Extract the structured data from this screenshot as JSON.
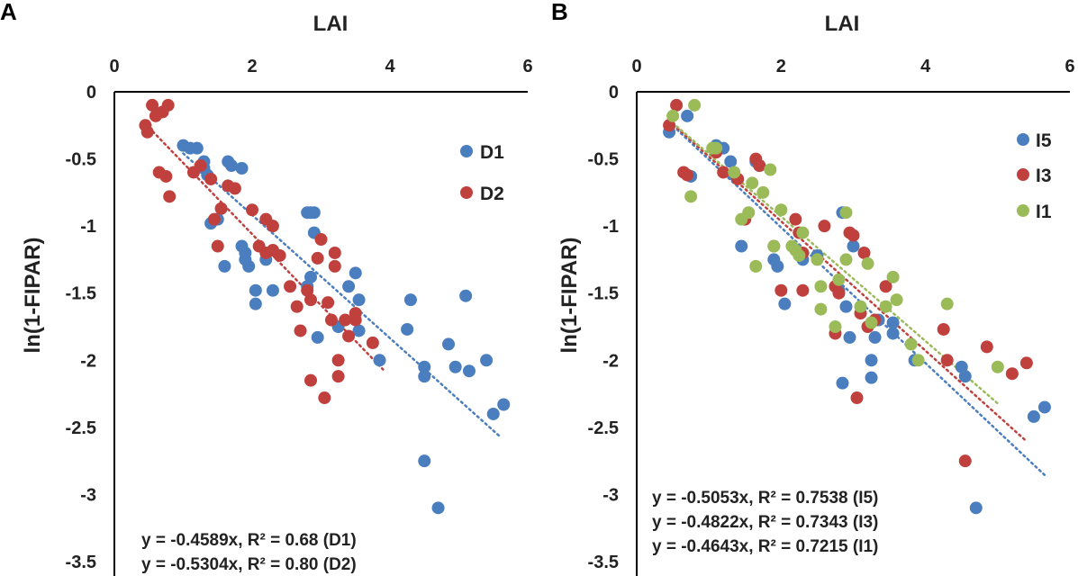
{
  "colors": {
    "D1": "#4a7ebf",
    "D2": "#c0403d",
    "I5": "#4a7ebf",
    "I3": "#c0403d",
    "I1": "#9bbb59"
  },
  "chart_data": [
    {
      "panel": "A",
      "type": "scatter",
      "xlabel": "LAI",
      "ylabel": "ln(1-FIPAR)",
      "xlim": [
        0,
        6
      ],
      "ylim": [
        -3.5,
        0
      ],
      "xticks": [
        "0",
        "2",
        "4",
        "6"
      ],
      "yticks": [
        "0",
        "-0.5",
        "-1",
        "-1.5",
        "-2",
        "-2.5",
        "-3",
        "-3.5"
      ],
      "legend_position": "top-right",
      "equations": [
        "y = -0.4589x, R² = 0.68 (D1)",
        "y = -0.5304x, R² = 0.80 (D2)"
      ],
      "series": [
        {
          "name": "D1",
          "color_key": "D1",
          "slope": -0.4589,
          "fit_x": [
            1.0,
            5.6
          ],
          "points": [
            [
              1.0,
              -0.4
            ],
            [
              1.1,
              -0.42
            ],
            [
              1.2,
              -0.42
            ],
            [
              1.3,
              -0.52
            ],
            [
              1.3,
              -0.57
            ],
            [
              1.35,
              -0.62
            ],
            [
              1.4,
              -0.98
            ],
            [
              1.5,
              -0.95
            ],
            [
              1.6,
              -1.3
            ],
            [
              1.65,
              -0.52
            ],
            [
              1.7,
              -0.55
            ],
            [
              1.85,
              -0.57
            ],
            [
              1.85,
              -1.15
            ],
            [
              1.9,
              -1.2
            ],
            [
              1.9,
              -1.25
            ],
            [
              1.95,
              -1.3
            ],
            [
              2.05,
              -1.48
            ],
            [
              2.05,
              -1.58
            ],
            [
              2.2,
              -1.25
            ],
            [
              2.3,
              -1.48
            ],
            [
              2.8,
              -0.9
            ],
            [
              2.85,
              -0.9
            ],
            [
              2.9,
              -0.9
            ],
            [
              2.9,
              -1.05
            ],
            [
              2.8,
              -1.45
            ],
            [
              2.85,
              -1.38
            ],
            [
              2.95,
              -1.83
            ],
            [
              3.25,
              -1.75
            ],
            [
              3.4,
              -1.45
            ],
            [
              3.5,
              -1.35
            ],
            [
              3.55,
              -1.55
            ],
            [
              3.55,
              -1.78
            ],
            [
              3.85,
              -2.0
            ],
            [
              4.25,
              -1.77
            ],
            [
              4.3,
              -1.55
            ],
            [
              4.5,
              -2.05
            ],
            [
              4.5,
              -2.12
            ],
            [
              4.5,
              -2.75
            ],
            [
              4.7,
              -3.1
            ],
            [
              4.85,
              -1.88
            ],
            [
              4.95,
              -2.05
            ],
            [
              5.15,
              -2.08
            ],
            [
              5.1,
              -1.52
            ],
            [
              5.4,
              -2.0
            ],
            [
              5.5,
              -2.4
            ],
            [
              5.65,
              -2.33
            ]
          ]
        },
        {
          "name": "D2",
          "color_key": "D2",
          "slope": -0.5304,
          "fit_x": [
            0.45,
            3.9
          ],
          "points": [
            [
              0.45,
              -0.25
            ],
            [
              0.48,
              -0.3
            ],
            [
              0.55,
              -0.1
            ],
            [
              0.6,
              -0.18
            ],
            [
              0.7,
              -0.15
            ],
            [
              0.78,
              -0.1
            ],
            [
              0.65,
              -0.6
            ],
            [
              0.75,
              -0.63
            ],
            [
              0.8,
              -0.78
            ],
            [
              1.15,
              -0.6
            ],
            [
              1.25,
              -0.55
            ],
            [
              1.4,
              -0.65
            ],
            [
              1.45,
              -0.95
            ],
            [
              1.5,
              -1.15
            ],
            [
              1.55,
              -0.87
            ],
            [
              1.65,
              -0.7
            ],
            [
              1.75,
              -0.72
            ],
            [
              2.0,
              -0.88
            ],
            [
              2.1,
              -1.15
            ],
            [
              2.2,
              -0.95
            ],
            [
              2.3,
              -1.0
            ],
            [
              2.3,
              -1.18
            ],
            [
              2.2,
              -1.2
            ],
            [
              2.4,
              -1.22
            ],
            [
              2.55,
              -1.45
            ],
            [
              2.65,
              -1.6
            ],
            [
              2.7,
              -1.78
            ],
            [
              2.85,
              -1.55
            ],
            [
              2.8,
              -1.48
            ],
            [
              2.85,
              -2.15
            ],
            [
              2.95,
              -1.24
            ],
            [
              3.0,
              -1.1
            ],
            [
              3.05,
              -2.28
            ],
            [
              3.1,
              -1.57
            ],
            [
              3.15,
              -1.7
            ],
            [
              3.2,
              -1.2
            ],
            [
              3.2,
              -1.3
            ],
            [
              3.25,
              -2.0
            ],
            [
              3.25,
              -2.12
            ],
            [
              3.35,
              -1.7
            ],
            [
              3.4,
              -1.82
            ],
            [
              3.5,
              -1.65
            ],
            [
              3.5,
              -1.7
            ],
            [
              3.75,
              -1.87
            ]
          ]
        }
      ]
    },
    {
      "panel": "B",
      "type": "scatter",
      "xlabel": "LAI",
      "ylabel": "ln(1-FIPAR)",
      "xlim": [
        0,
        6
      ],
      "ylim": [
        -3.5,
        0
      ],
      "xticks": [
        "0",
        "2",
        "4",
        "6"
      ],
      "yticks": [
        "0",
        "-0.5",
        "-1",
        "-1.5",
        "-2",
        "-2.5",
        "-3",
        "-3.5"
      ],
      "legend_position": "top-right",
      "equations": [
        "y = -0.5053x, R² = 0.7538 (I5)",
        "y = -0.4822x, R² = 0.7343 (I3)",
        "y = -0.4643x, R² = 0.7215 (I1)"
      ],
      "series": [
        {
          "name": "I5",
          "color_key": "I5",
          "slope": -0.5053,
          "fit_x": [
            0.45,
            5.65
          ],
          "points": [
            [
              0.45,
              -0.3
            ],
            [
              0.7,
              -0.18
            ],
            [
              0.75,
              -0.63
            ],
            [
              1.1,
              -0.4
            ],
            [
              1.2,
              -0.42
            ],
            [
              1.3,
              -0.52
            ],
            [
              1.35,
              -0.62
            ],
            [
              1.45,
              -1.15
            ],
            [
              1.65,
              -0.52
            ],
            [
              1.7,
              -0.55
            ],
            [
              1.9,
              -1.25
            ],
            [
              1.95,
              -1.3
            ],
            [
              2.05,
              -1.58
            ],
            [
              2.3,
              -1.25
            ],
            [
              2.5,
              -1.22
            ],
            [
              2.8,
              -1.48
            ],
            [
              2.85,
              -0.9
            ],
            [
              2.9,
              -1.6
            ],
            [
              2.95,
              -1.83
            ],
            [
              2.85,
              -2.17
            ],
            [
              3.0,
              -1.15
            ],
            [
              3.25,
              -2.0
            ],
            [
              3.25,
              -2.13
            ],
            [
              3.3,
              -1.83
            ],
            [
              3.35,
              -1.7
            ],
            [
              3.55,
              -1.72
            ],
            [
              3.55,
              -1.8
            ],
            [
              3.85,
              -2.0
            ],
            [
              4.5,
              -2.05
            ],
            [
              4.55,
              -2.12
            ],
            [
              4.7,
              -3.1
            ],
            [
              5.5,
              -2.42
            ],
            [
              5.65,
              -2.35
            ]
          ]
        },
        {
          "name": "I3",
          "color_key": "I3",
          "slope": -0.4822,
          "fit_x": [
            0.45,
            5.4
          ],
          "points": [
            [
              0.45,
              -0.25
            ],
            [
              0.55,
              -0.1
            ],
            [
              0.65,
              -0.6
            ],
            [
              0.7,
              -0.62
            ],
            [
              1.1,
              -0.45
            ],
            [
              1.2,
              -0.6
            ],
            [
              1.4,
              -0.65
            ],
            [
              1.5,
              -0.95
            ],
            [
              1.65,
              -0.5
            ],
            [
              1.7,
              -0.55
            ],
            [
              1.9,
              -1.15
            ],
            [
              2.0,
              -1.48
            ],
            [
              2.2,
              -0.95
            ],
            [
              2.25,
              -1.05
            ],
            [
              2.3,
              -1.2
            ],
            [
              2.3,
              -1.48
            ],
            [
              2.6,
              -1.0
            ],
            [
              2.75,
              -1.45
            ],
            [
              2.8,
              -1.5
            ],
            [
              2.75,
              -1.8
            ],
            [
              2.95,
              -1.05
            ],
            [
              3.0,
              -1.07
            ],
            [
              3.05,
              -2.28
            ],
            [
              3.1,
              -1.65
            ],
            [
              3.15,
              -1.2
            ],
            [
              3.2,
              -1.75
            ],
            [
              3.3,
              -1.7
            ],
            [
              3.45,
              -1.45
            ],
            [
              4.25,
              -1.77
            ],
            [
              4.3,
              -2.0
            ],
            [
              4.55,
              -2.75
            ],
            [
              4.85,
              -1.9
            ],
            [
              5.2,
              -2.1
            ],
            [
              5.4,
              -2.02
            ]
          ]
        },
        {
          "name": "I1",
          "color_key": "I1",
          "slope": -0.4643,
          "fit_x": [
            0.5,
            5.0
          ],
          "points": [
            [
              0.5,
              -0.18
            ],
            [
              0.8,
              -0.1
            ],
            [
              0.75,
              -0.78
            ],
            [
              1.05,
              -0.42
            ],
            [
              1.1,
              -0.42
            ],
            [
              1.35,
              -0.6
            ],
            [
              1.45,
              -0.95
            ],
            [
              1.55,
              -0.9
            ],
            [
              1.6,
              -0.68
            ],
            [
              1.65,
              -1.3
            ],
            [
              1.75,
              -0.75
            ],
            [
              1.85,
              -0.58
            ],
            [
              1.9,
              -1.15
            ],
            [
              2.0,
              -0.88
            ],
            [
              2.15,
              -1.15
            ],
            [
              2.2,
              -1.18
            ],
            [
              2.25,
              -1.22
            ],
            [
              2.3,
              -1.05
            ],
            [
              2.5,
              -1.25
            ],
            [
              2.55,
              -1.45
            ],
            [
              2.55,
              -1.62
            ],
            [
              2.75,
              -1.75
            ],
            [
              2.8,
              -1.4
            ],
            [
              2.9,
              -0.9
            ],
            [
              2.9,
              -1.25
            ],
            [
              3.1,
              -1.6
            ],
            [
              3.2,
              -1.28
            ],
            [
              3.25,
              -1.72
            ],
            [
              3.45,
              -1.6
            ],
            [
              3.55,
              -1.38
            ],
            [
              3.6,
              -1.55
            ],
            [
              3.8,
              -1.88
            ],
            [
              3.9,
              -2.0
            ],
            [
              4.3,
              -1.58
            ],
            [
              5.0,
              -2.05
            ]
          ]
        }
      ]
    }
  ]
}
